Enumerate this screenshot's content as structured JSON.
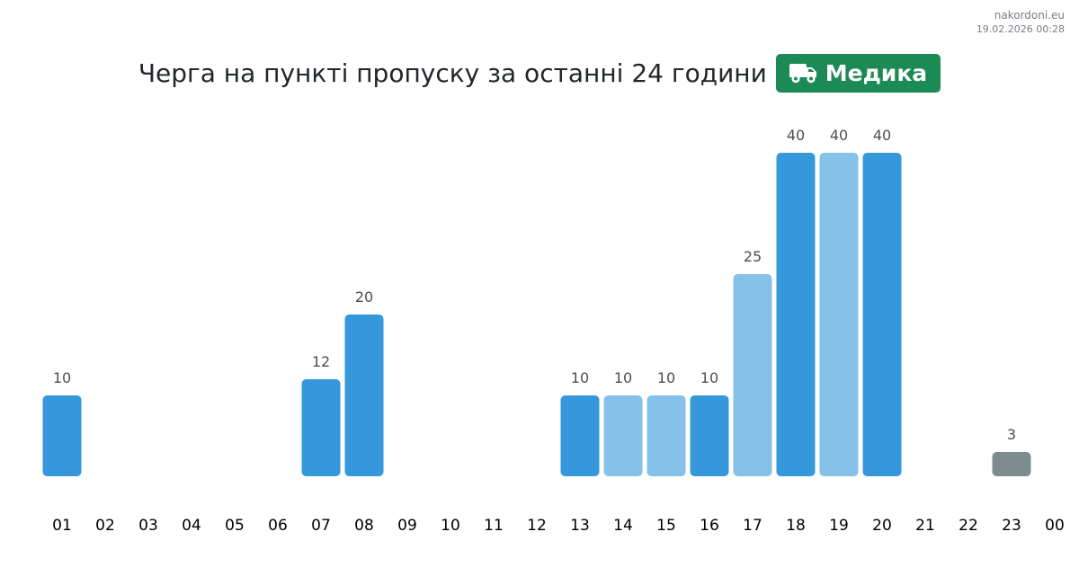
{
  "source": {
    "site": "nakordoni.eu",
    "timestamp": "19.02.2026 00:28"
  },
  "header": {
    "title": "Черга на пункті пропуску за останні 24 години",
    "checkpoint_badge": {
      "label": "Медика",
      "icon": "truck-icon",
      "color": "#1c8a55"
    }
  },
  "colors": {
    "bar_dark": "#3498db",
    "bar_light": "#85c1e9",
    "bar_gray": "#7f8c8d",
    "label_text": "#4a4f54",
    "tick_text": "#000000"
  },
  "chart_data": {
    "type": "bar",
    "title": "Черга на пункті пропуску за останні 24 години",
    "xlabel": "",
    "ylabel": "",
    "categories": [
      "01",
      "02",
      "03",
      "04",
      "05",
      "06",
      "07",
      "08",
      "09",
      "10",
      "11",
      "12",
      "13",
      "14",
      "15",
      "16",
      "17",
      "18",
      "19",
      "20",
      "21",
      "22",
      "23",
      "00"
    ],
    "values": [
      10,
      null,
      null,
      null,
      null,
      null,
      12,
      20,
      null,
      null,
      null,
      null,
      10,
      10,
      10,
      10,
      25,
      40,
      40,
      40,
      null,
      null,
      3,
      null
    ],
    "bar_color_keys": [
      "dark",
      null,
      null,
      null,
      null,
      null,
      "dark",
      "dark",
      null,
      null,
      null,
      null,
      "dark",
      "light",
      "light",
      "dark",
      "light",
      "dark",
      "light",
      "dark",
      null,
      null,
      "gray",
      null
    ],
    "ylim": [
      0,
      40
    ],
    "grid": false,
    "legend": "none"
  }
}
